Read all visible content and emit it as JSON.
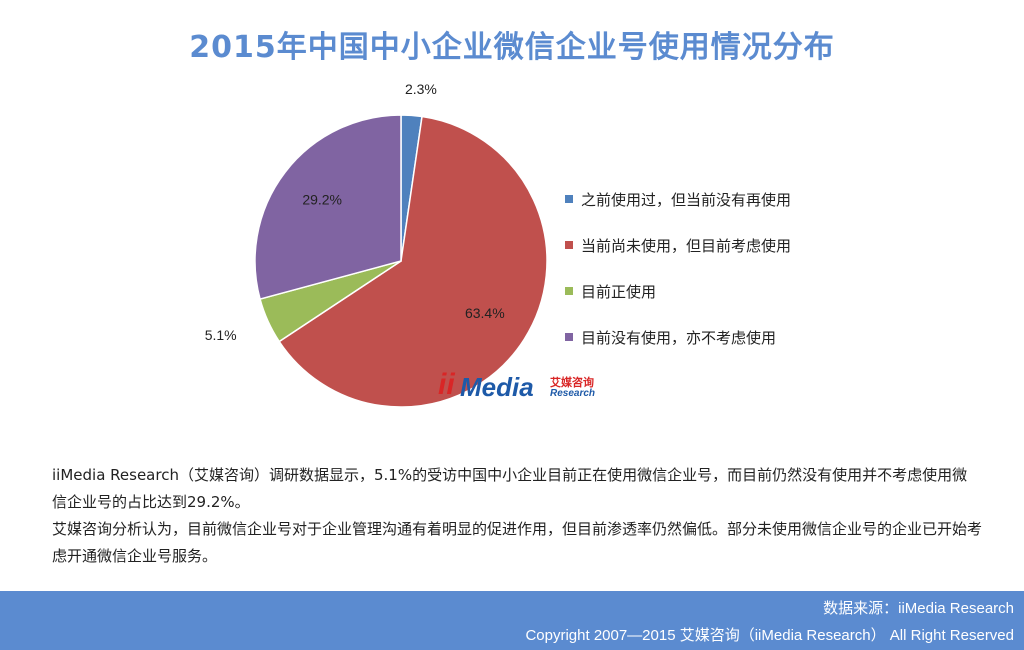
{
  "title": "2015年中国中小企业微信企业号使用情况分布",
  "chart_data": {
    "type": "pie",
    "title": "2015年中国中小企业微信企业号使用情况分布",
    "slices": [
      {
        "label": "之前使用过，但当前没有再使用",
        "value": 2.3,
        "display": "2.3%",
        "color": "#4f81bd"
      },
      {
        "label": "当前尚未使用，但目前考虑使用",
        "value": 63.4,
        "display": "63.4%",
        "color": "#c0504d"
      },
      {
        "label": "目前正使用",
        "value": 5.1,
        "display": "5.1%",
        "color": "#9bbb59"
      },
      {
        "label": "目前没有使用，亦不考虑使用",
        "value": 29.2,
        "display": "29.2%",
        "color": "#8064a2"
      }
    ],
    "legend_position": "right"
  },
  "watermark": {
    "ii": "ii",
    "media": "Media",
    "cn": "艾媒咨询",
    "en": "Research"
  },
  "analysis": {
    "p1": "iiMedia Research（艾媒咨询）调研数据显示，5.1%的受访中国中小企业目前正在使用微信企业号，而目前仍然没有使用并不考虑使用微信企业号的占比达到29.2%。",
    "p2": "艾媒咨询分析认为，目前微信企业号对于企业管理沟通有着明显的促进作用，但目前渗透率仍然偏低。部分未使用微信企业号的企业已开始考虑开通微信企业号服务。"
  },
  "footer": {
    "source": "数据来源：iiMedia Research",
    "copyright": "Copyright 2007—2015 艾媒咨询（iiMedia Research） All Right Reserved"
  }
}
